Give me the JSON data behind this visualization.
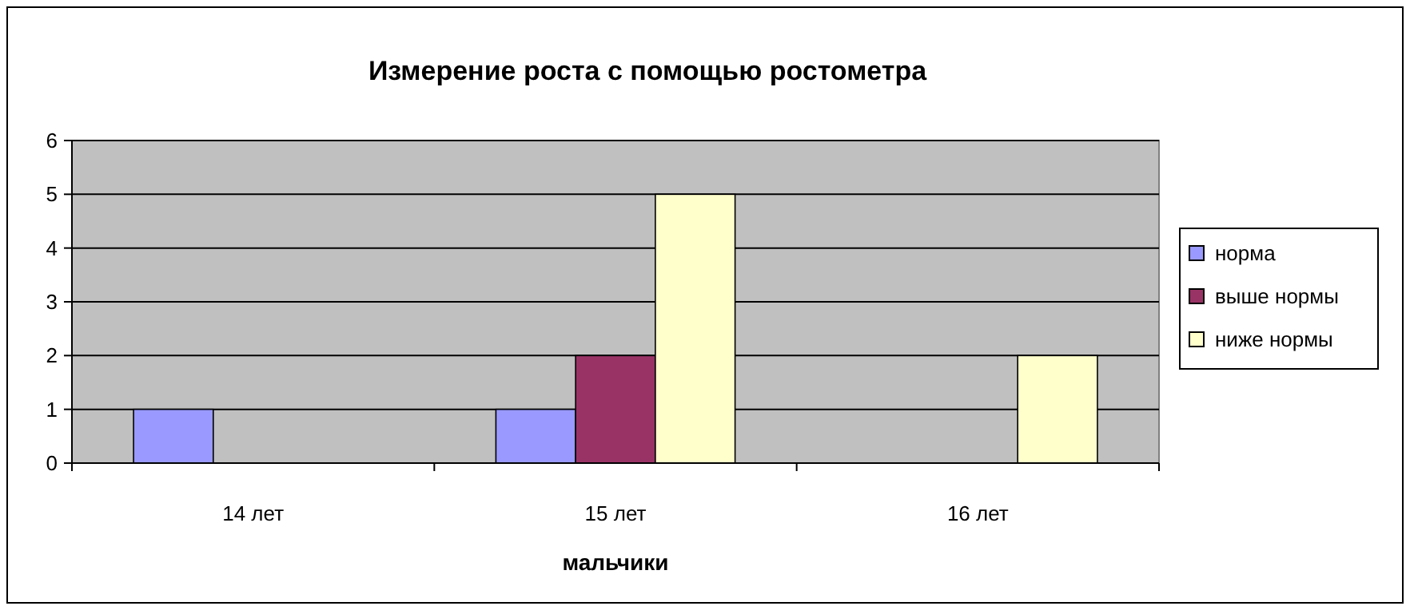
{
  "chart_data": {
    "type": "bar",
    "title": "Измерение роста с помощью ростометра",
    "xlabel": "мальчики",
    "categories": [
      "14 лет",
      "15 лет",
      "16 лет"
    ],
    "series": [
      {
        "name": "норма",
        "color": "#9999ff",
        "values": [
          1,
          1,
          0
        ]
      },
      {
        "name": "выше нормы",
        "color": "#993366",
        "values": [
          0,
          2,
          0
        ]
      },
      {
        "name": "ниже нормы",
        "color": "#ffffcc",
        "values": [
          0,
          5,
          2
        ]
      }
    ],
    "ylim": [
      0,
      6
    ],
    "yticks": [
      0,
      1,
      2,
      3,
      4,
      5,
      6
    ],
    "grid": "y",
    "legend": "right"
  }
}
